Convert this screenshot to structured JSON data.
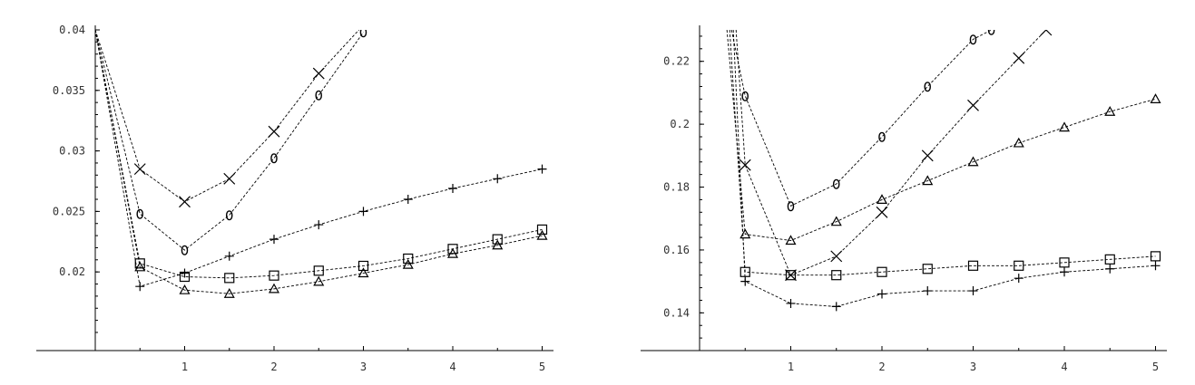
{
  "chart_data": [
    {
      "type": "line",
      "title": "",
      "xlabel": "",
      "ylabel": "",
      "xlim": [
        0,
        5.1
      ],
      "ylim": [
        0.0135,
        0.04
      ],
      "xticks": [
        1,
        2,
        3,
        4,
        5
      ],
      "xtick_labels": [
        "1",
        "2",
        "3",
        "4",
        "5"
      ],
      "yticks": [
        0.02,
        0.025,
        0.03,
        0.035,
        0.04
      ],
      "ytick_labels": [
        "0.02",
        "0.025",
        "0.03",
        "0.035",
        "0.04"
      ],
      "grid": false,
      "series": [
        {
          "marker": "x",
          "x": [
            0,
            0.5,
            1,
            1.5,
            2,
            2.5,
            3.2
          ],
          "y": [
            0.04,
            0.0285,
            0.0258,
            0.0277,
            0.0316,
            0.0364,
            0.042
          ]
        },
        {
          "marker": "circle",
          "x": [
            0,
            0.5,
            1,
            1.5,
            2,
            2.5,
            3
          ],
          "y": [
            0.04,
            0.0248,
            0.0218,
            0.0247,
            0.0294,
            0.0346,
            0.0398
          ]
        },
        {
          "marker": "plus",
          "x": [
            0,
            0.5,
            1,
            1.5,
            2,
            2.5,
            3,
            3.5,
            4,
            4.5,
            5
          ],
          "y": [
            0.04,
            0.0188,
            0.0199,
            0.0213,
            0.0227,
            0.0239,
            0.025,
            0.026,
            0.0269,
            0.0277,
            0.0285
          ]
        },
        {
          "marker": "square",
          "x": [
            0,
            0.5,
            1,
            1.5,
            2,
            2.5,
            3,
            3.5,
            4,
            4.5,
            5
          ],
          "y": [
            0.04,
            0.0207,
            0.0196,
            0.0195,
            0.0197,
            0.0201,
            0.0205,
            0.0211,
            0.0219,
            0.0227,
            0.0235
          ]
        },
        {
          "marker": "triangle",
          "x": [
            0,
            0.5,
            1,
            1.5,
            2,
            2.5,
            3,
            3.5,
            4,
            4.5,
            5
          ],
          "y": [
            0.04,
            0.0204,
            0.0185,
            0.0182,
            0.0186,
            0.0192,
            0.0199,
            0.0206,
            0.0215,
            0.0222,
            0.023
          ]
        }
      ]
    },
    {
      "type": "line",
      "title": "",
      "xlabel": "",
      "ylabel": "",
      "xlim": [
        0,
        5.1
      ],
      "ylim": [
        0.128,
        0.23
      ],
      "xticks": [
        1,
        2,
        3,
        4,
        5
      ],
      "xtick_labels": [
        "1",
        "2",
        "3",
        "4",
        "5"
      ],
      "yticks": [
        0.14,
        0.16,
        0.18,
        0.2,
        0.22
      ],
      "ytick_labels": [
        "0.14",
        "0.16",
        "0.18",
        "0.2",
        "0.22"
      ],
      "grid": false,
      "series": [
        {
          "marker": "circle",
          "x": [
            0.35,
            0.5,
            1,
            1.5,
            2,
            2.5,
            3,
            3.2
          ],
          "y": [
            0.23,
            0.209,
            0.174,
            0.181,
            0.196,
            0.212,
            0.227,
            0.23
          ]
        },
        {
          "marker": "x",
          "x": [
            0.4,
            0.5,
            1,
            1.5,
            2,
            2.5,
            3,
            3.5,
            3.8
          ],
          "y": [
            0.23,
            0.187,
            0.152,
            0.158,
            0.172,
            0.19,
            0.206,
            0.221,
            0.23
          ]
        },
        {
          "marker": "triangle",
          "x": [
            0.3,
            0.5,
            1,
            1.5,
            2,
            2.5,
            3,
            3.5,
            4,
            4.5,
            5
          ],
          "y": [
            0.23,
            0.165,
            0.163,
            0.169,
            0.176,
            0.182,
            0.188,
            0.194,
            0.199,
            0.204,
            0.208
          ]
        },
        {
          "marker": "square",
          "x": [
            0.33,
            0.5,
            1,
            1.5,
            2,
            2.5,
            3,
            3.5,
            4,
            4.5,
            5
          ],
          "y": [
            0.23,
            0.153,
            0.152,
            0.152,
            0.153,
            0.154,
            0.155,
            0.155,
            0.156,
            0.157,
            0.158
          ]
        },
        {
          "marker": "plus",
          "x": [
            0.37,
            0.5,
            1,
            1.5,
            2,
            2.5,
            3,
            3.5,
            4,
            4.5,
            5
          ],
          "y": [
            0.23,
            0.15,
            0.143,
            0.142,
            0.146,
            0.147,
            0.147,
            0.151,
            0.153,
            0.154,
            0.155
          ]
        }
      ]
    }
  ]
}
